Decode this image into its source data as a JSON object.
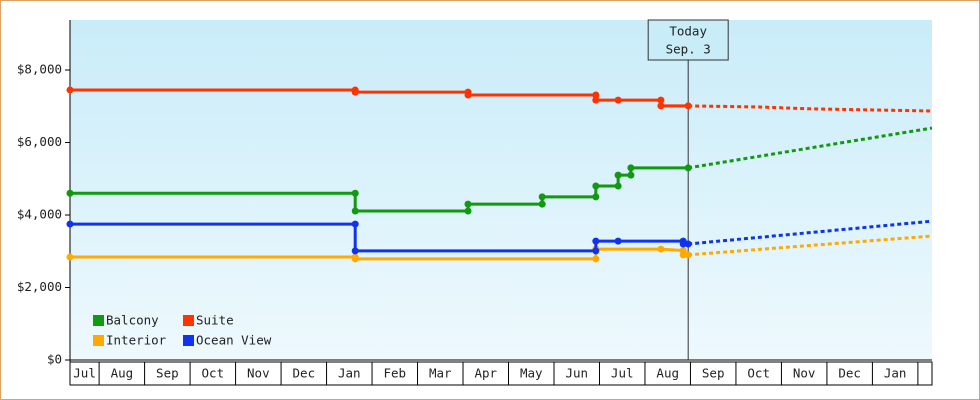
{
  "chart_data": {
    "type": "line",
    "step": true,
    "grid": false,
    "legend": "lower left",
    "xlim": [
      -0.64,
      18.31
    ],
    "ylim": [
      0,
      9380
    ],
    "yticks": [
      {
        "value": 0,
        "label": "$0"
      },
      {
        "value": 2000,
        "label": "$2,000"
      },
      {
        "value": 4000,
        "label": "$4,000"
      },
      {
        "value": 6000,
        "label": "$6,000"
      },
      {
        "value": 8000,
        "label": "$8,000"
      }
    ],
    "xticks": [
      {
        "value": -0.32,
        "label": "Jul"
      },
      {
        "value": 0.5,
        "label": "Aug"
      },
      {
        "value": 1.5,
        "label": "Sep"
      },
      {
        "value": 2.5,
        "label": "Oct"
      },
      {
        "value": 3.5,
        "label": "Nov"
      },
      {
        "value": 4.5,
        "label": "Dec"
      },
      {
        "value": 5.5,
        "label": "Jan"
      },
      {
        "value": 6.5,
        "label": "Feb"
      },
      {
        "value": 7.5,
        "label": "Mar"
      },
      {
        "value": 8.5,
        "label": "Apr"
      },
      {
        "value": 9.5,
        "label": "May"
      },
      {
        "value": 10.5,
        "label": "Jun"
      },
      {
        "value": 11.5,
        "label": "Jul"
      },
      {
        "value": 12.5,
        "label": "Aug"
      },
      {
        "value": 13.5,
        "label": "Sep"
      },
      {
        "value": 14.5,
        "label": "Oct"
      },
      {
        "value": 15.5,
        "label": "Nov"
      },
      {
        "value": 16.5,
        "label": "Dec"
      },
      {
        "value": 17.5,
        "label": "Jan"
      }
    ],
    "annotations": [
      {
        "x": 12.95,
        "text": [
          "Today",
          "Sep. 3"
        ]
      }
    ],
    "series": [
      {
        "name": "Balcony",
        "color": "#119911",
        "x": [
          -0.64,
          5.63,
          5.63,
          8.11,
          8.11,
          9.74,
          9.74,
          10.92,
          10.92,
          11.41,
          11.41,
          11.69,
          11.69,
          12.95
        ],
        "values": [
          4600,
          4600,
          4110,
          4110,
          4300,
          4300,
          4500,
          4500,
          4800,
          4800,
          5100,
          5100,
          5300,
          5300
        ],
        "forecast": {
          "x": [
            12.95,
            18.31
          ],
          "values": [
            5300,
            6400
          ]
        }
      },
      {
        "name": "Suite",
        "color": "#ff3300",
        "x": [
          -0.64,
          5.63,
          5.63,
          8.11,
          8.11,
          10.92,
          10.92,
          11.41,
          12.35,
          12.35,
          12.95
        ],
        "values": [
          7450,
          7450,
          7390,
          7390,
          7310,
          7310,
          7170,
          7170,
          7170,
          7010,
          7010
        ],
        "forecast": {
          "x": [
            12.95,
            14.53,
            15.63,
            18.31
          ],
          "values": [
            7010,
            6980,
            6930,
            6870
          ]
        }
      },
      {
        "name": "Interior",
        "color": "#ffaa00",
        "x": [
          -0.64,
          5.63,
          5.63,
          10.92,
          10.92,
          12.35,
          12.84,
          12.84,
          12.95
        ],
        "values": [
          2840,
          2840,
          2790,
          2790,
          3060,
          3060,
          3020,
          2900,
          2900
        ],
        "forecast": {
          "x": [
            12.95,
            18.31
          ],
          "values": [
            2900,
            3420
          ]
        }
      },
      {
        "name": "Ocean View",
        "color": "#1133ee",
        "x": [
          -0.64,
          5.63,
          5.63,
          10.92,
          10.92,
          11.41,
          12.84,
          12.84,
          12.95
        ],
        "values": [
          3750,
          3750,
          3010,
          3010,
          3280,
          3280,
          3280,
          3200,
          3200
        ],
        "forecast": {
          "x": [
            12.95,
            18.31
          ],
          "values": [
            3200,
            3830
          ]
        }
      }
    ]
  }
}
